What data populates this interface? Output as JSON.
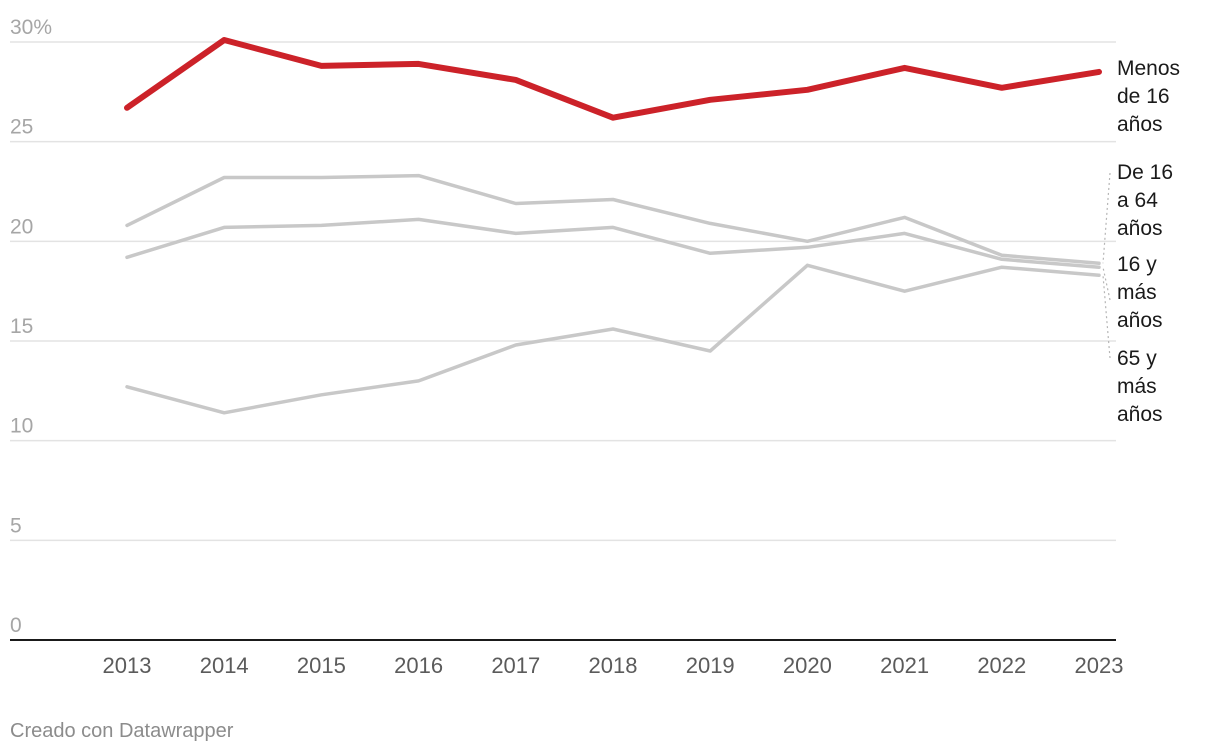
{
  "chart_data": {
    "type": "line",
    "x": [
      "2013",
      "2014",
      "2015",
      "2016",
      "2017",
      "2018",
      "2019",
      "2020",
      "2021",
      "2022",
      "2023"
    ],
    "ylim": [
      0,
      30
    ],
    "yticks": [
      "0",
      "5",
      "10",
      "15",
      "20",
      "25",
      "30%"
    ],
    "grid": true,
    "legend": "inline-right",
    "series": [
      {
        "name": "Menos de 16 años",
        "label_lines": [
          "Menos",
          "de 16",
          "años"
        ],
        "color": "#cc2229",
        "width": 6,
        "values": [
          26.7,
          30.1,
          28.8,
          28.9,
          28.1,
          26.2,
          27.1,
          27.6,
          28.7,
          27.7,
          28.5
        ]
      },
      {
        "name": "De 16 a 64 años",
        "label_lines": [
          "De 16",
          "a 64",
          "años"
        ],
        "color": "#c8c8c8",
        "width": 3.5,
        "values": [
          20.8,
          23.2,
          23.2,
          23.3,
          21.9,
          22.1,
          20.9,
          20.0,
          21.2,
          19.3,
          18.9
        ]
      },
      {
        "name": "16 y más años",
        "label_lines": [
          "16 y",
          "más",
          "años"
        ],
        "color": "#c8c8c8",
        "width": 3.5,
        "values": [
          19.2,
          20.7,
          20.8,
          21.1,
          20.4,
          20.7,
          19.4,
          19.7,
          20.4,
          19.1,
          18.7
        ]
      },
      {
        "name": "65 y más años",
        "label_lines": [
          "65 y",
          "más",
          "años"
        ],
        "color": "#c8c8c8",
        "width": 3.5,
        "values": [
          12.7,
          11.4,
          12.3,
          13.0,
          14.8,
          15.6,
          14.5,
          18.8,
          17.5,
          18.7,
          18.3
        ]
      }
    ]
  },
  "footer": {
    "credit": "Creado con Datawrapper"
  }
}
